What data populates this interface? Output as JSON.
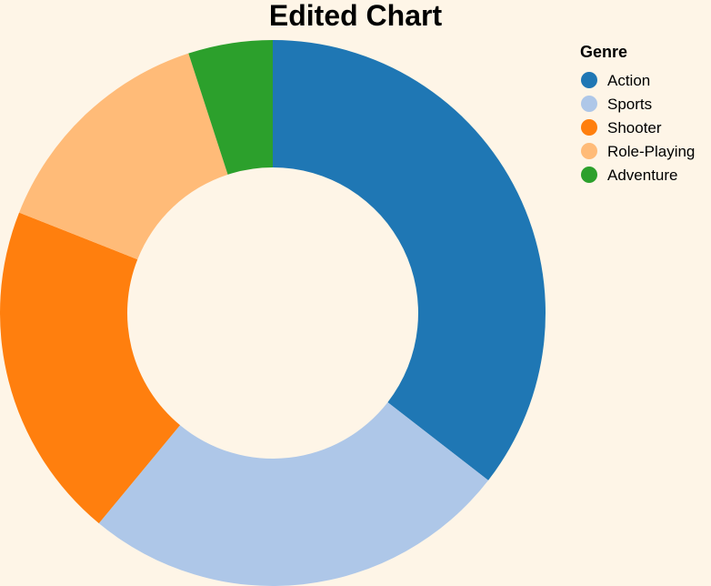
{
  "chart_data": {
    "type": "pie",
    "title": "Edited Chart",
    "legend": {
      "title": "Genre",
      "placement": "top-right"
    },
    "categories": [
      "Action",
      "Sports",
      "Shooter",
      "Role-Playing",
      "Adventure"
    ],
    "values": [
      35.5,
      25.5,
      20.0,
      14.0,
      5.0
    ],
    "colors": [
      "#1f77b4",
      "#aec7e8",
      "#ff7f0e",
      "#ffbb78",
      "#2ca02c"
    ],
    "donut": true,
    "background": "#fef5e7"
  }
}
